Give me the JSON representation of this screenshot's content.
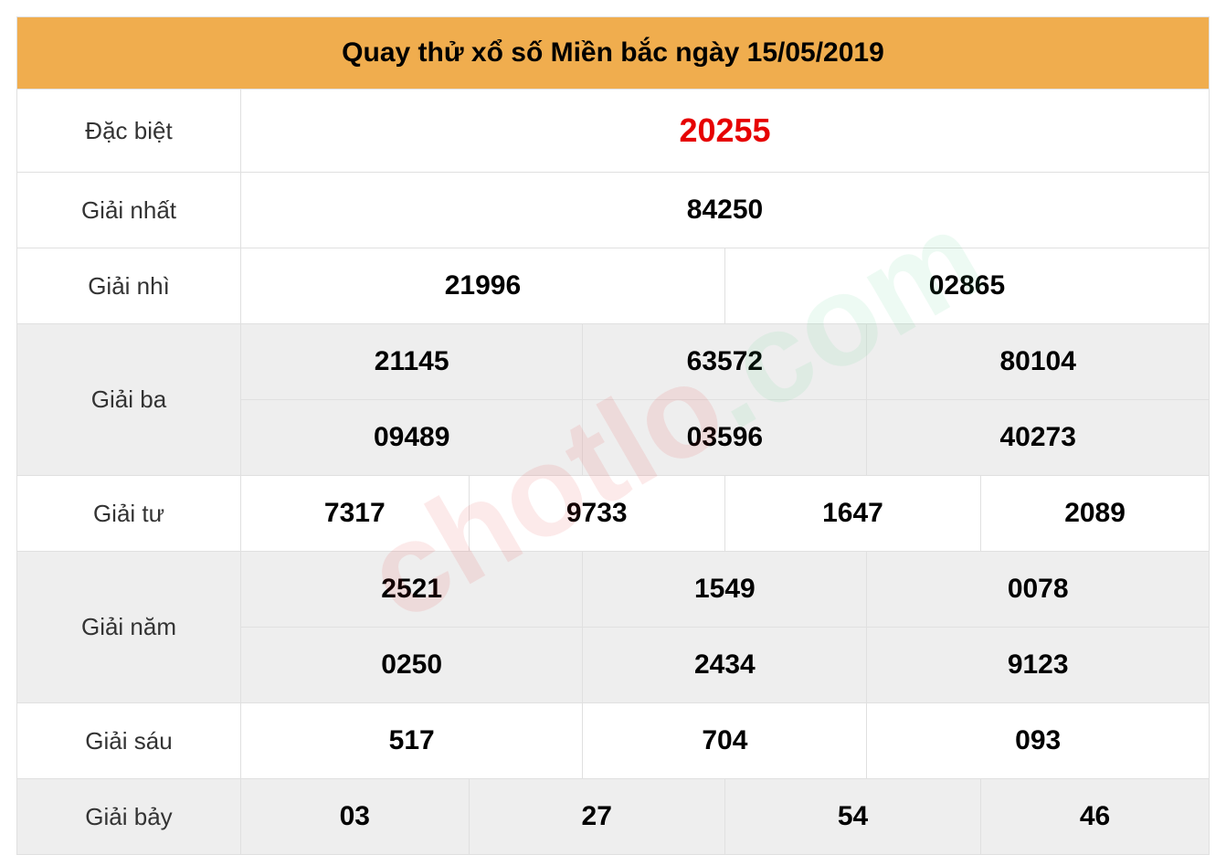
{
  "title": "Quay thử xổ số Miền bắc ngày 15/05/2019",
  "watermark": {
    "part1": "chotlo",
    "part2": ".com"
  },
  "rows": {
    "dacbiet": {
      "label": "Đặc biệt",
      "value": "20255"
    },
    "giainhat": {
      "label": "Giải nhất",
      "value": "84250"
    },
    "giainhi": {
      "label": "Giải nhì",
      "values": [
        "21996",
        "02865"
      ]
    },
    "giaiba": {
      "label": "Giải ba",
      "row1": [
        "21145",
        "63572",
        "80104"
      ],
      "row2": [
        "09489",
        "03596",
        "40273"
      ]
    },
    "giaitu": {
      "label": "Giải tư",
      "values": [
        "7317",
        "9733",
        "1647",
        "2089"
      ]
    },
    "giainam": {
      "label": "Giải năm",
      "row1": [
        "2521",
        "1549",
        "0078"
      ],
      "row2": [
        "0250",
        "2434",
        "9123"
      ]
    },
    "giaisau": {
      "label": "Giải sáu",
      "values": [
        "517",
        "704",
        "093"
      ]
    },
    "giaibay": {
      "label": "Giải bảy",
      "values": [
        "03",
        "27",
        "54",
        "46"
      ]
    }
  },
  "styling": {
    "header_bg": "#f0ad4e",
    "alt_row_bg": "#eeeeee",
    "border_color": "#e0e0e0",
    "special_color": "#e60000",
    "text_color": "#000000",
    "label_color": "#333333",
    "header_fontsize": 30,
    "value_fontsize": 30,
    "special_fontsize": 36,
    "label_fontsize": 26,
    "label_col_width": 245,
    "row_padding": 24
  }
}
